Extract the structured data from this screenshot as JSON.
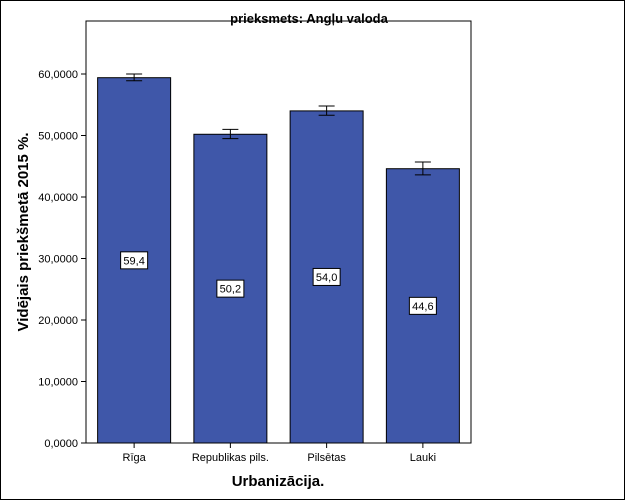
{
  "chart_data": {
    "type": "bar",
    "title": "prieksmets: Angļu valoda",
    "xlabel": "Urbanizācija.",
    "ylabel": "Vidējais priekšmetā 2015 %.",
    "categories": [
      "Rīga",
      "Republikas pils.",
      "Pilsētas",
      "Lauki"
    ],
    "values": [
      59.4,
      50.2,
      54.0,
      44.6
    ],
    "value_labels": [
      "59,4",
      "50,2",
      "54,0",
      "44,6"
    ],
    "error_low": [
      58.9,
      49.5,
      53.3,
      43.6
    ],
    "error_high": [
      60.0,
      51.0,
      54.8,
      45.7
    ],
    "ylim": [
      0,
      70
    ],
    "yticks": [
      0,
      10,
      20,
      30,
      40,
      50,
      60
    ],
    "ytick_labels": [
      "0,0000",
      "10,0000",
      "20,0000",
      "30,0000",
      "40,0000",
      "50,0000",
      "60,0000"
    ],
    "grid": false,
    "bar_color": "#3f57a9",
    "error_bar_color": "#000000"
  }
}
